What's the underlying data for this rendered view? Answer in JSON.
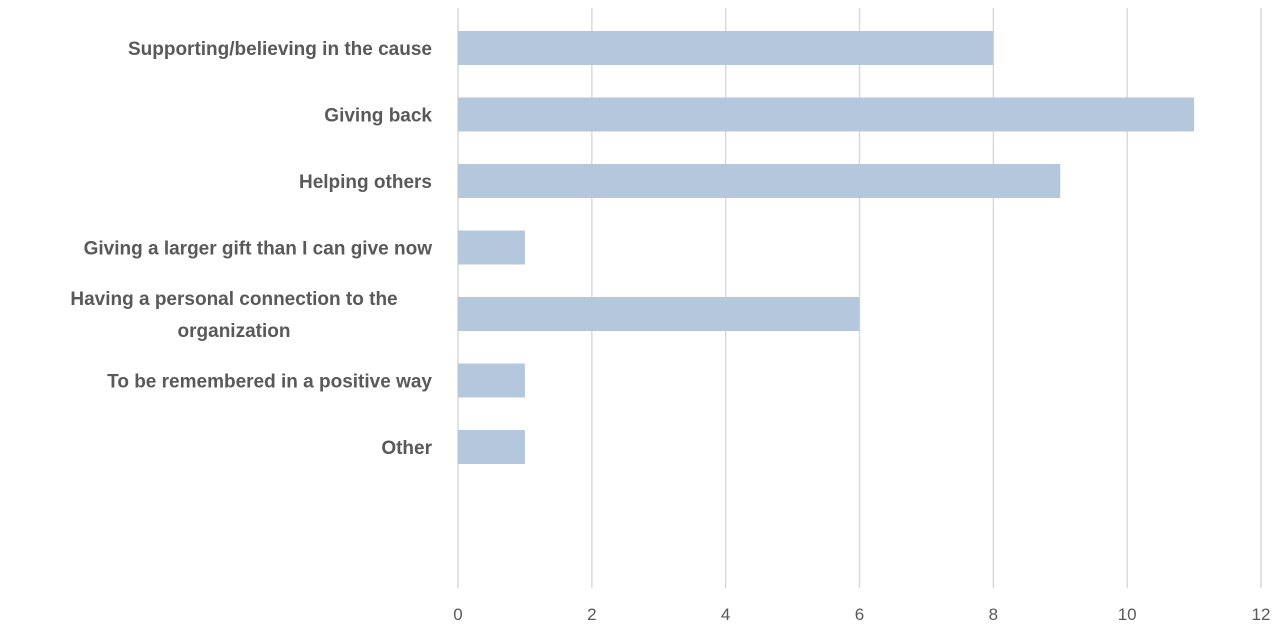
{
  "chart_data": {
    "type": "bar",
    "orientation": "horizontal",
    "title": "",
    "xlabel": "",
    "ylabel": "",
    "categories": [
      "Supporting/believing in the cause",
      "Giving back",
      "Helping others",
      "Giving a larger gift than I can give now",
      "Having a personal connection to the organization",
      "To be remembered in a positive way",
      "Other"
    ],
    "category_lines": [
      [
        "Supporting/believing in the cause"
      ],
      [
        "Giving back"
      ],
      [
        "Helping others"
      ],
      [
        "Giving a larger gift than I can give now"
      ],
      [
        "Having a personal connection to the",
        "organization"
      ],
      [
        "To be remembered in a positive way"
      ],
      [
        "Other"
      ]
    ],
    "values": [
      8,
      11,
      9,
      1,
      6,
      1,
      1
    ],
    "xlim": [
      0,
      12
    ],
    "xticks": [
      0,
      2,
      4,
      6,
      8,
      10,
      12
    ],
    "grid": true,
    "legend": "none",
    "bar_color": "#b4c7dc",
    "grid_color": "#d9d9d9",
    "text_color": "#595959"
  }
}
